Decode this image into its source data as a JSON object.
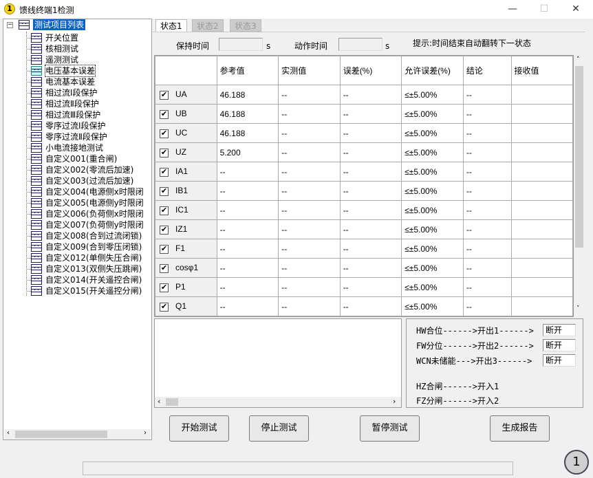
{
  "window": {
    "title": "馈线终端1检测",
    "app_icon": "1",
    "minimize": "—",
    "maximize": "☐",
    "close": "✕"
  },
  "tree": {
    "root": "测试项目列表",
    "items": [
      "开关位置",
      "核相测试",
      "遥测测试",
      "电压基本误差",
      "电流基本误差",
      "相过流Ⅰ段保护",
      "相过流Ⅱ段保护",
      "相过流Ⅲ段保护",
      "零序过流Ⅰ段保护",
      "零序过流Ⅱ段保护",
      "小电流接地测试",
      "自定义001(重合闸)",
      "自定义002(零流后加速)",
      "自定义003(过流后加速)",
      "自定义004(电源侧x时限闭",
      "自定义005(电源侧y时限闭",
      "自定义006(负荷侧x时限闭",
      "自定义007(负荷侧y时限闭",
      "自定义008(合到过流闭锁)",
      "自定义009(合到零压闭锁)",
      "自定义012(单侧失压合闸)",
      "自定义013(双侧失压跳闸)",
      "自定义014(开关遥控合闸)",
      "自定义015(开关遥控分闸)"
    ],
    "selected": "电压基本误差"
  },
  "tabs": [
    "状态1",
    "状态2",
    "状态3"
  ],
  "timing": {
    "hold_label": "保持时间",
    "hold_value": "",
    "hold_unit": "s",
    "action_label": "动作时间",
    "action_value": "",
    "action_unit": "s",
    "hint": "提示:时间结束自动翻转下一状态"
  },
  "table": {
    "columns": [
      "",
      "参考值",
      "实测值",
      "误差(%)",
      "允许误差(%)",
      "结论",
      "接收值"
    ],
    "rows": [
      [
        "UA",
        "46.188",
        "--",
        "--",
        "≤±5.00%",
        "--",
        ""
      ],
      [
        "UB",
        "46.188",
        "--",
        "--",
        "≤±5.00%",
        "--",
        ""
      ],
      [
        "UC",
        "46.188",
        "--",
        "--",
        "≤±5.00%",
        "--",
        ""
      ],
      [
        "UZ",
        "5.200",
        "--",
        "--",
        "≤±5.00%",
        "--",
        ""
      ],
      [
        "IA1",
        "--",
        "--",
        "--",
        "≤±5.00%",
        "--",
        ""
      ],
      [
        "IB1",
        "--",
        "--",
        "--",
        "≤±5.00%",
        "--",
        ""
      ],
      [
        "IC1",
        "--",
        "--",
        "--",
        "≤±5.00%",
        "--",
        ""
      ],
      [
        "IZ1",
        "--",
        "--",
        "--",
        "≤±5.00%",
        "--",
        ""
      ],
      [
        "F1",
        "--",
        "--",
        "--",
        "≤±5.00%",
        "--",
        ""
      ],
      [
        "cosφ1",
        "--",
        "--",
        "--",
        "≤±5.00%",
        "--",
        ""
      ],
      [
        "P1",
        "--",
        "--",
        "--",
        "≤±5.00%",
        "--",
        ""
      ],
      [
        "Q1",
        "--",
        "--",
        "--",
        "≤±5.00%",
        "--",
        ""
      ],
      [
        "",
        "",
        "",
        "",
        "",
        "",
        ""
      ]
    ],
    "checked": true
  },
  "io": {
    "outputs": [
      {
        "text": "HW合位------>开出1------>",
        "state": "断开"
      },
      {
        "text": "FW分位------>开出2------>",
        "state": "断开"
      },
      {
        "text": "WCN未储能--->开出3------>",
        "state": "断开"
      }
    ],
    "inputs": [
      "HZ合闸------>开入1",
      "FZ分闸------>开入2"
    ]
  },
  "buttons": {
    "start": "开始测试",
    "stop": "停止测试",
    "pause": "暂停测试",
    "report": "生成报告"
  },
  "corner_badge": "1"
}
